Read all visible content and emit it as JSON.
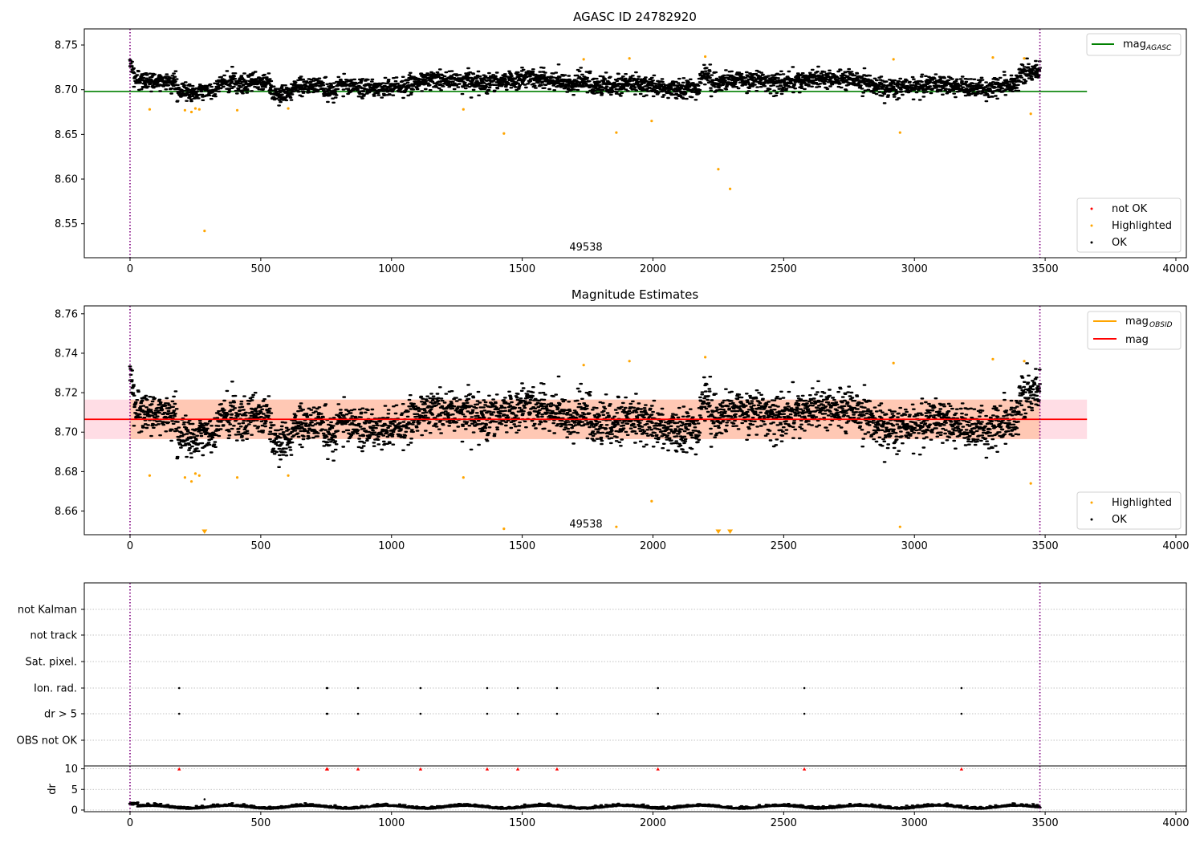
{
  "figure": {
    "colors": {
      "ok": "#000000",
      "highlighted": "#ffa500",
      "not_ok": "#ff0000",
      "agasc_line": "#008000",
      "obsid_line": "#ffa500",
      "mag_line": "#ff0000",
      "band_fill": "#ffc8b4",
      "band_fill_outside": "#ffdde5",
      "obs_boundary": "#800080",
      "grid": "#b0b0b0"
    }
  },
  "chart_data": [
    {
      "type": "scatter",
      "title": "AGASC ID 24782920",
      "xlim": [
        -175,
        4040
      ],
      "ylim": [
        8.512,
        8.768
      ],
      "xticks": [
        "0",
        "500",
        "1000",
        "1500",
        "2000",
        "2500",
        "3000",
        "3500",
        "4000"
      ],
      "xtick_values": [
        0,
        500,
        1000,
        1500,
        2000,
        2500,
        3000,
        3500,
        4000
      ],
      "yticks": [
        "8.55",
        "8.60",
        "8.65",
        "8.70",
        "8.75"
      ],
      "ytick_values": [
        8.55,
        8.6,
        8.65,
        8.7,
        8.75
      ],
      "annotation": {
        "text": "49538",
        "x": 1735,
        "y": 8.52
      },
      "obs_boundaries": [
        0,
        3480
      ],
      "hline": {
        "name": "mag",
        "subscript": "AGASC",
        "y": 8.698,
        "x": [
          -175,
          3660
        ]
      },
      "ok_series": {
        "name": "OK",
        "n_points": 3470,
        "x_range": [
          0,
          3480
        ],
        "mean": 8.707,
        "spread": 0.007
      },
      "highlighted": {
        "name": "Highlighted",
        "points": [
          [
            75,
            8.678
          ],
          [
            210,
            8.677
          ],
          [
            235,
            8.675
          ],
          [
            250,
            8.679
          ],
          [
            265,
            8.678
          ],
          [
            285,
            8.542
          ],
          [
            410,
            8.677
          ],
          [
            605,
            8.679
          ],
          [
            1275,
            8.678
          ],
          [
            1430,
            8.651
          ],
          [
            1735,
            8.734
          ],
          [
            1860,
            8.652
          ],
          [
            1910,
            8.735
          ],
          [
            1995,
            8.665
          ],
          [
            2200,
            8.737
          ],
          [
            2250,
            8.611
          ],
          [
            2295,
            8.589
          ],
          [
            2920,
            8.734
          ],
          [
            2945,
            8.652
          ],
          [
            3300,
            8.736
          ],
          [
            3420,
            8.735
          ],
          [
            3445,
            8.673
          ]
        ]
      },
      "not_ok": {
        "name": "not OK",
        "points": []
      },
      "legend_top": [
        {
          "label": "mag",
          "sub": "AGASC"
        }
      ],
      "legend_bottom": [
        {
          "label": "not OK"
        },
        {
          "label": "Highlighted"
        },
        {
          "label": "OK"
        }
      ]
    },
    {
      "type": "scatter",
      "title": "Magnitude Estimates",
      "xlim": [
        -175,
        4040
      ],
      "ylim": [
        8.648,
        8.764
      ],
      "xticks": [
        "0",
        "500",
        "1000",
        "1500",
        "2000",
        "2500",
        "3000",
        "3500",
        "4000"
      ],
      "xtick_values": [
        0,
        500,
        1000,
        1500,
        2000,
        2500,
        3000,
        3500,
        4000
      ],
      "yticks": [
        "8.66",
        "8.68",
        "8.70",
        "8.72",
        "8.74",
        "8.76"
      ],
      "ytick_values": [
        8.66,
        8.68,
        8.7,
        8.72,
        8.74,
        8.76
      ],
      "annotation": {
        "text": "49538",
        "x": 1735,
        "y": 8.6515
      },
      "obs_boundaries": [
        0,
        3480
      ],
      "band": {
        "y": [
          8.6965,
          8.7165
        ],
        "x": [
          -175,
          3660
        ],
        "obs_x": [
          0,
          3480
        ]
      },
      "hline_mag": {
        "name": "mag",
        "y": 8.7065,
        "x": [
          -175,
          3660
        ]
      },
      "hline_obsid": {
        "name": "mag",
        "subscript": "OBSID",
        "y": 8.7065,
        "x": [
          0,
          3480
        ]
      },
      "ok_series": {
        "name": "OK",
        "n_points": 3470,
        "x_range": [
          0,
          3480
        ],
        "mean": 8.707,
        "spread": 0.009
      },
      "highlighted": {
        "name": "Highlighted",
        "points": [
          [
            75,
            8.678
          ],
          [
            210,
            8.677
          ],
          [
            235,
            8.675
          ],
          [
            250,
            8.679
          ],
          [
            265,
            8.678
          ],
          [
            410,
            8.677
          ],
          [
            605,
            8.678
          ],
          [
            1275,
            8.677
          ],
          [
            1430,
            8.651
          ],
          [
            1735,
            8.734
          ],
          [
            1860,
            8.652
          ],
          [
            1910,
            8.736
          ],
          [
            1995,
            8.665
          ],
          [
            2200,
            8.738
          ],
          [
            2920,
            8.735
          ],
          [
            2945,
            8.652
          ],
          [
            3300,
            8.737
          ],
          [
            3420,
            8.736
          ],
          [
            3445,
            8.674
          ]
        ],
        "below_range_x": [
          285,
          2250,
          2295
        ]
      },
      "legend_top": [
        {
          "label": "mag",
          "sub": "OBSID"
        },
        {
          "label": "mag"
        }
      ],
      "legend_bottom": [
        {
          "label": "Highlighted"
        },
        {
          "label": "OK"
        }
      ]
    },
    {
      "type": "scatter",
      "title": "",
      "xlim": [
        -175,
        4040
      ],
      "categories": [
        "not Kalman",
        "not track",
        "Sat. pixel.",
        "Ion. rad.",
        "dr > 5",
        "OBS not OK"
      ],
      "flag_points": {
        "Ion. rad.": [
          188,
          752,
          755,
          872,
          1111,
          1366,
          1483,
          1633,
          2019,
          2579,
          3180
        ],
        "dr > 5": [
          188,
          752,
          755,
          872,
          1111,
          1366,
          1483,
          1633,
          2019,
          2579,
          3180
        ]
      },
      "obs_boundaries": [
        0,
        3480
      ]
    },
    {
      "type": "line",
      "title": "",
      "ylabel": "dr",
      "xlim": [
        -175,
        4040
      ],
      "ylim": [
        -0.4,
        10.7
      ],
      "xticks": [
        "0",
        "500",
        "1000",
        "1500",
        "2000",
        "2500",
        "3000",
        "3500",
        "4000"
      ],
      "xtick_values": [
        0,
        500,
        1000,
        1500,
        2000,
        2500,
        3000,
        3500,
        4000
      ],
      "yticks": [
        "0",
        "5",
        "10"
      ],
      "ytick_values": [
        0,
        5,
        10
      ],
      "dr_series": {
        "name": "dr",
        "n_points": 3470,
        "x_range": [
          0,
          3480
        ],
        "mean": 0.6
      },
      "dr_outliers": [
        [
          285,
          2.6
        ]
      ],
      "capped_markers": {
        "y": 10,
        "x": [
          188,
          752,
          755,
          872,
          1111,
          1366,
          1483,
          1633,
          2019,
          2579,
          3180
        ]
      },
      "obs_boundaries": [
        0,
        3480
      ]
    }
  ]
}
